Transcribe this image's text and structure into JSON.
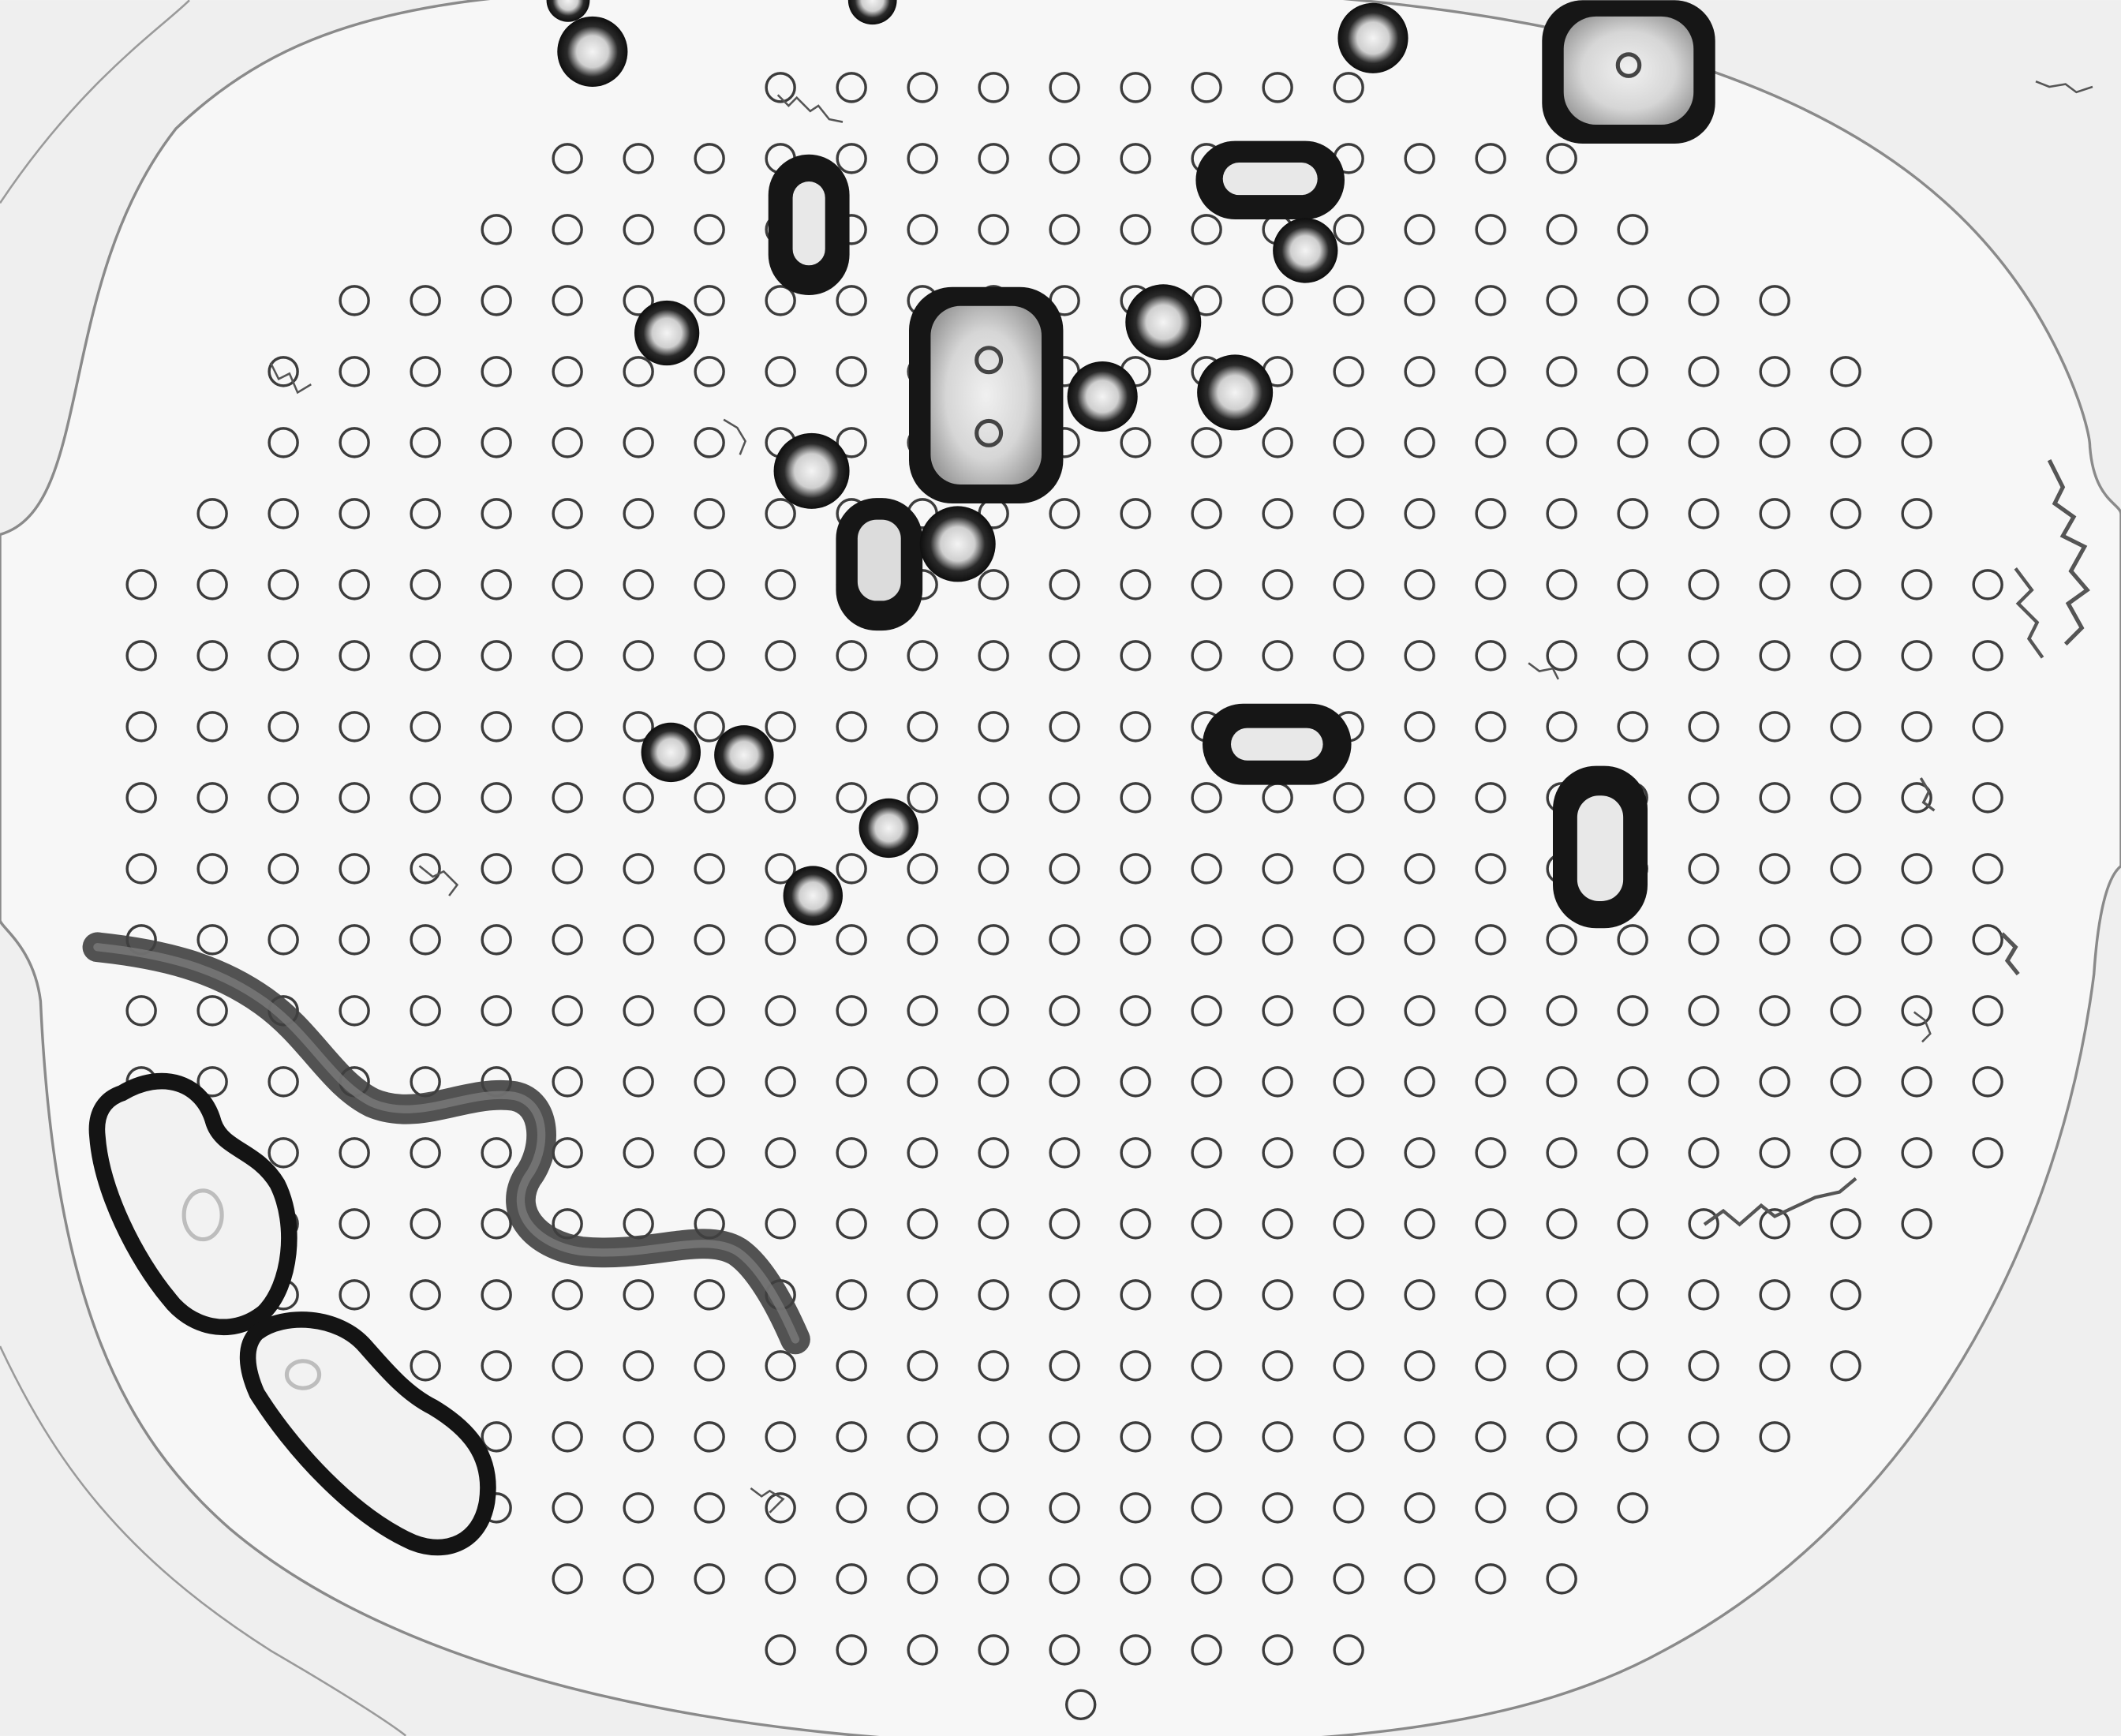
{
  "image": {
    "subject": "microfluidic-pillar-array",
    "colors": {
      "background": "#f1f1f1",
      "chamber": "#f6f6f6",
      "outline": "#8a8a8a",
      "pillar_stroke": "#3c3c3c",
      "pillar_fill": "#f7f7f7",
      "bubble_dark": "#141414",
      "bubble_core": "#d8d8d8",
      "worm": "#4a4a4a",
      "debris": "#6a6a6a"
    }
  }
}
